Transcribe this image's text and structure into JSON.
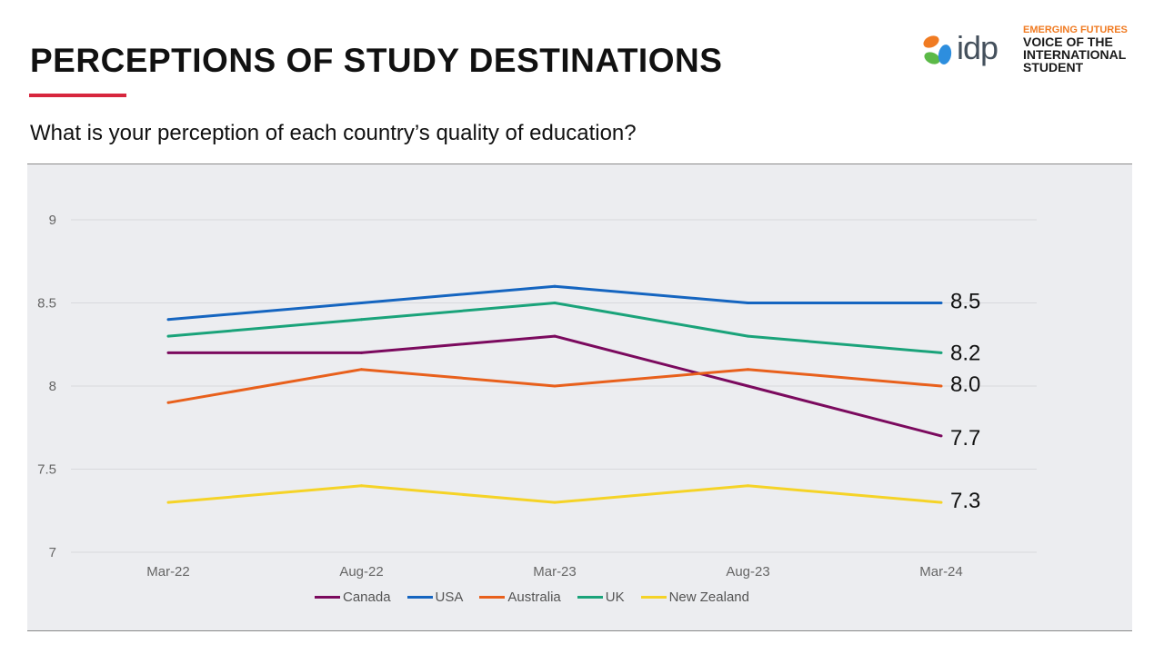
{
  "header": {
    "title": "PERCEPTIONS OF STUDY DESTINATIONS",
    "subtitle": "What is your perception of each country’s quality of education?",
    "accent_color": "#d7263d"
  },
  "branding": {
    "logo_word": "idp",
    "tagline_top": "EMERGING FUTURES",
    "tagline_main": "VOICE OF THE INTERNATIONAL STUDENT",
    "tagline_color": "#f07b22"
  },
  "chart_data": {
    "type": "line",
    "categories": [
      "Mar-22",
      "Aug-22",
      "Mar-23",
      "Aug-23",
      "Mar-24"
    ],
    "ylim": [
      7,
      9
    ],
    "yticks": [
      "7",
      "7.5",
      "8",
      "8.5",
      "9"
    ],
    "grid": true,
    "legend_position": "bottom",
    "series": [
      {
        "name": "Canada",
        "color": "#7b0a5e",
        "values": [
          8.2,
          8.2,
          8.3,
          8.0,
          7.7
        ],
        "end_label": "7.7"
      },
      {
        "name": "USA",
        "color": "#1565c0",
        "values": [
          8.4,
          8.5,
          8.6,
          8.5,
          8.5
        ],
        "end_label": "8.5"
      },
      {
        "name": "Australia",
        "color": "#e8601c",
        "values": [
          7.9,
          8.1,
          8.0,
          8.1,
          8.0
        ],
        "end_label": "8.0"
      },
      {
        "name": "UK",
        "color": "#1aa37a",
        "values": [
          8.3,
          8.4,
          8.5,
          8.3,
          8.2
        ],
        "end_label": "8.2"
      },
      {
        "name": "New Zealand",
        "color": "#f5d327",
        "values": [
          7.3,
          7.4,
          7.3,
          7.4,
          7.3
        ],
        "end_label": "7.3"
      }
    ]
  }
}
